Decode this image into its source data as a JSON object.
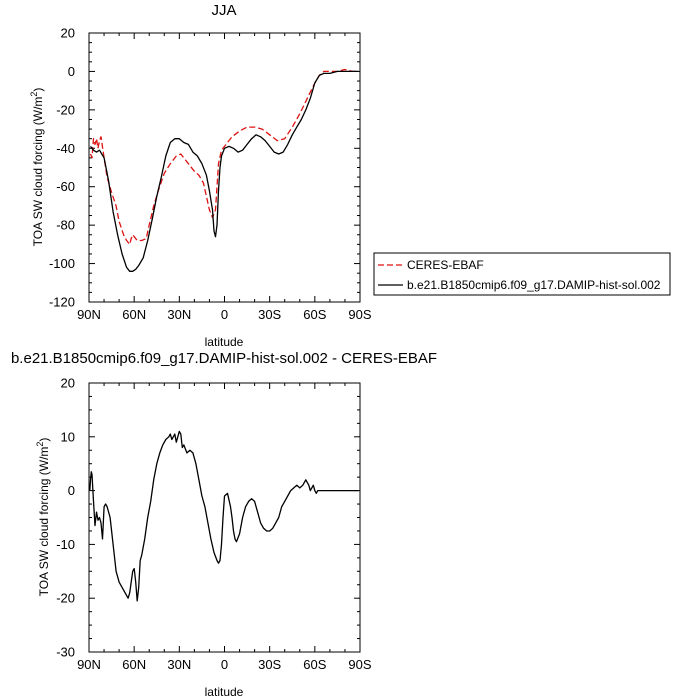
{
  "chart_data": [
    {
      "type": "line",
      "title": "JJA",
      "xlabel": "latitude",
      "ylabel_main": "TOA SW cloud forcing (W/m",
      "ylabel_sup": "2",
      "ylabel_close": ")",
      "xlim": [
        90,
        -90
      ],
      "ylim": [
        -120,
        20
      ],
      "xticks": [
        90,
        60,
        30,
        0,
        -30,
        -60,
        -90
      ],
      "xtick_labels": [
        "90N",
        "60N",
        "30N",
        "0",
        "30S",
        "60S",
        "90S"
      ],
      "yticks": [
        20,
        0,
        -20,
        -40,
        -60,
        -80,
        -100,
        -120
      ],
      "ytick_labels": [
        "20",
        "0",
        "-20",
        "-40",
        "-60",
        "-80",
        "-100",
        "-120"
      ],
      "grid": false,
      "legend_position": "outside-right",
      "series": [
        {
          "name": "CERES-EBAF",
          "color": "#dd1111",
          "dash": true,
          "x": [
            89,
            88,
            87,
            86,
            85,
            84,
            83,
            82,
            80,
            78,
            75,
            72,
            70,
            67,
            65,
            63,
            62,
            61,
            60,
            58,
            55,
            52,
            50,
            47,
            44,
            40,
            36,
            32,
            29,
            27,
            24,
            20,
            17,
            14,
            12,
            10,
            8,
            6,
            5,
            4,
            2,
            0,
            -2,
            -5,
            -10,
            -15,
            -20,
            -25,
            -30,
            -35,
            -40,
            -45,
            -50,
            -55,
            -60,
            -63,
            -66,
            -70,
            -75,
            -80,
            -85,
            -89
          ],
          "values": [
            -43,
            -45,
            -35,
            -38,
            -35,
            -40,
            -36,
            -34,
            -45,
            -55,
            -63,
            -70,
            -78,
            -85,
            -88,
            -90,
            -87,
            -85,
            -86,
            -88,
            -88,
            -87,
            -80,
            -70,
            -62,
            -53,
            -48,
            -44,
            -43,
            -45,
            -48,
            -52,
            -54,
            -58,
            -65,
            -72,
            -76,
            -72,
            -60,
            -48,
            -41,
            -39,
            -37,
            -34,
            -31,
            -29,
            -29,
            -30,
            -33,
            -36,
            -35,
            -29,
            -22,
            -14,
            -6,
            -2,
            0,
            0,
            0,
            1,
            0,
            0
          ]
        },
        {
          "name": "b.e21.B1850cmip6.f09_g17.DAMIP-hist-sol.002",
          "color": "#000000",
          "dash": false,
          "x": [
            89,
            87,
            85,
            83,
            80,
            77,
            74,
            71,
            68,
            65,
            63,
            61,
            59,
            57,
            54,
            51,
            48,
            45,
            42,
            39,
            36,
            33,
            30,
            27,
            24,
            21,
            18,
            15,
            12,
            10,
            8,
            7,
            6,
            5,
            4,
            3,
            2,
            0,
            -3,
            -6,
            -9,
            -12,
            -15,
            -18,
            -21,
            -24,
            -27,
            -30,
            -33,
            -36,
            -39,
            -42,
            -45,
            -48,
            -51,
            -54,
            -57,
            -60,
            -63,
            -66,
            -70,
            -75,
            -80,
            -85,
            -89
          ],
          "values": [
            -39,
            -41,
            -42,
            -41,
            -45,
            -57,
            -73,
            -85,
            -95,
            -102,
            -104,
            -104,
            -103,
            -101,
            -97,
            -88,
            -77,
            -65,
            -55,
            -44,
            -37,
            -35,
            -35,
            -37,
            -38,
            -42,
            -44,
            -48,
            -54,
            -62,
            -72,
            -83,
            -86,
            -80,
            -62,
            -50,
            -44,
            -40,
            -39,
            -40,
            -42,
            -41,
            -38,
            -35,
            -33,
            -34,
            -36,
            -39,
            -42,
            -43,
            -42,
            -38,
            -33,
            -29,
            -25,
            -20,
            -14,
            -6,
            -2,
            -1,
            -1,
            0,
            0,
            0,
            0
          ]
        }
      ]
    },
    {
      "type": "line",
      "title": "b.e21.B1850cmip6.f09_g17.DAMIP-hist-sol.002 - CERES-EBAF",
      "xlabel": "latitude",
      "ylabel_main": "TOA SW cloud forcing (W/m",
      "ylabel_sup": "2",
      "ylabel_close": ")",
      "xlim": [
        90,
        -90
      ],
      "ylim": [
        -30,
        20
      ],
      "xticks": [
        90,
        60,
        30,
        0,
        -30,
        -60,
        -90
      ],
      "xtick_labels": [
        "90N",
        "60N",
        "30N",
        "0",
        "30S",
        "60S",
        "90S"
      ],
      "yticks": [
        20,
        10,
        0,
        -10,
        -20,
        -30
      ],
      "ytick_labels": [
        "20",
        "10",
        "0",
        "-10",
        "-20",
        "-30"
      ],
      "grid": false,
      "series": [
        {
          "name": "",
          "color": "#000000",
          "dash": false,
          "x": [
            89.5,
            89,
            88.5,
            88,
            87,
            86,
            85,
            84,
            83,
            82,
            81,
            80,
            79,
            78,
            77,
            76,
            74,
            72,
            70,
            68,
            66,
            64,
            63,
            62,
            61,
            60,
            59,
            58,
            57,
            56,
            55,
            53,
            51,
            49,
            47,
            45,
            43,
            41,
            39,
            37,
            36,
            35,
            34,
            33,
            32,
            31,
            30,
            29,
            28,
            27,
            25,
            23,
            21,
            19,
            17,
            15,
            13,
            11,
            9,
            7,
            5,
            4,
            3,
            2,
            1,
            0,
            -2,
            -4,
            -5,
            -6,
            -7,
            -8,
            -10,
            -12,
            -14,
            -16,
            -18,
            -20,
            -22,
            -24,
            -26,
            -28,
            -30,
            -32,
            -34,
            -36,
            -38,
            -40,
            -42,
            -44,
            -46,
            -48,
            -50,
            -52,
            -54,
            -56,
            -57,
            -58,
            -59,
            -60,
            -61,
            -62,
            -64,
            -66,
            -68,
            -70,
            -75,
            -80,
            -85,
            -89
          ],
          "values": [
            0,
            2,
            3.5,
            3,
            -2,
            -6.5,
            -4,
            -5.5,
            -5,
            -6,
            -9,
            -3,
            -2.5,
            -3,
            -4,
            -5,
            -10,
            -15,
            -17,
            -18,
            -19,
            -20,
            -19,
            -17,
            -15,
            -14.5,
            -17,
            -20.5,
            -18,
            -13,
            -12,
            -9,
            -5,
            -2,
            2,
            5,
            7,
            8.5,
            9.5,
            10,
            10.5,
            9.5,
            10,
            10.5,
            9,
            10,
            11,
            10.5,
            8,
            8.5,
            7,
            7.5,
            7,
            5,
            2,
            -1,
            -3,
            -6,
            -9,
            -11.5,
            -13,
            -13.5,
            -13,
            -10,
            -5,
            -1,
            -0.5,
            -3,
            -5,
            -7.5,
            -9,
            -9.5,
            -8,
            -5,
            -3,
            -2,
            -1.5,
            -2,
            -4,
            -6,
            -7,
            -7.5,
            -7.5,
            -7,
            -6,
            -5,
            -3,
            -2,
            -1,
            0,
            0.5,
            1,
            0.5,
            1,
            2,
            1,
            0,
            0.5,
            1,
            0,
            -0.5,
            0,
            0,
            0,
            0,
            0,
            0,
            0,
            0,
            0
          ]
        }
      ]
    }
  ]
}
